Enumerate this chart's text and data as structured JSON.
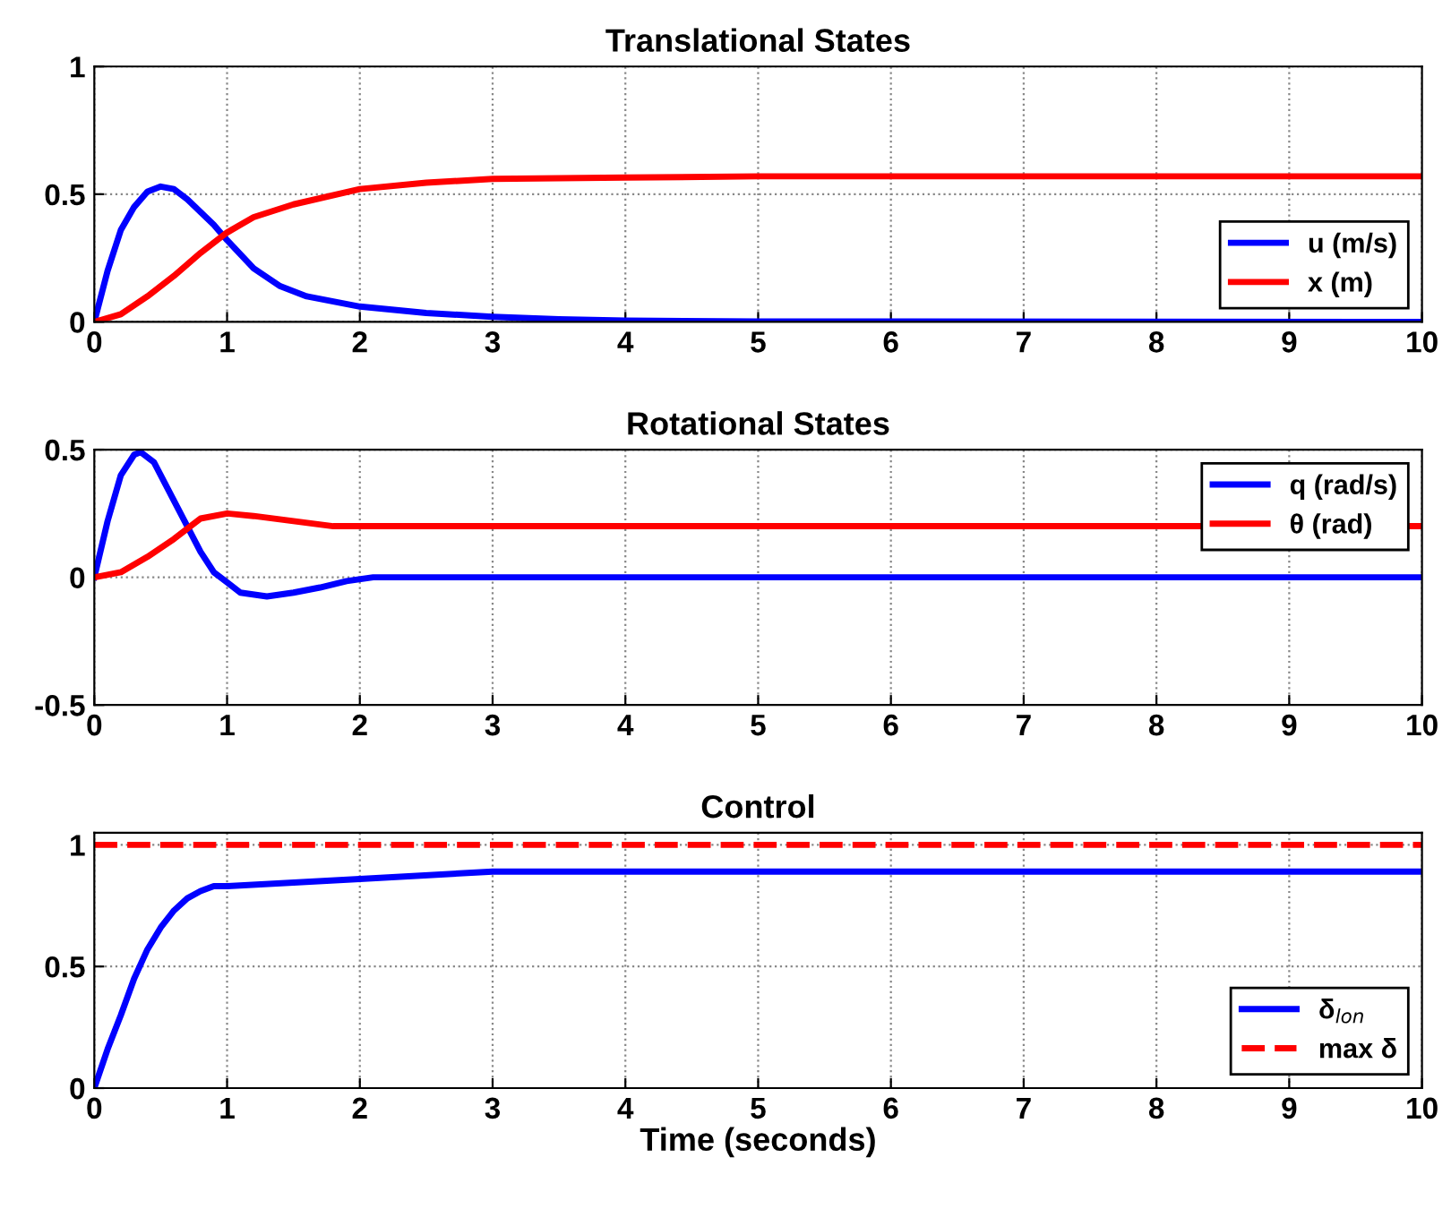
{
  "chart_data": [
    {
      "type": "line",
      "title": "Translational States",
      "xlim": [
        0,
        10
      ],
      "xticks": [
        0,
        1,
        2,
        3,
        4,
        5,
        6,
        7,
        8,
        9,
        10
      ],
      "ylim": [
        0,
        1
      ],
      "yticks": [
        0,
        0.5,
        1
      ],
      "grid": true,
      "legend": "bottom right",
      "series": [
        {
          "name": "u (m/s)",
          "color": "#0000ff",
          "x": [
            0,
            0.1,
            0.2,
            0.3,
            0.4,
            0.5,
            0.6,
            0.7,
            0.8,
            0.9,
            1.0,
            1.2,
            1.4,
            1.6,
            1.8,
            2,
            2.5,
            3,
            3.5,
            4,
            5,
            10
          ],
          "values": [
            0,
            0.2,
            0.36,
            0.45,
            0.51,
            0.53,
            0.52,
            0.48,
            0.43,
            0.38,
            0.32,
            0.21,
            0.14,
            0.1,
            0.08,
            0.06,
            0.035,
            0.02,
            0.01,
            0.005,
            0.002,
            0
          ]
        },
        {
          "name": "x (m)",
          "color": "#ff0000",
          "x": [
            0,
            0.2,
            0.4,
            0.6,
            0.8,
            1.0,
            1.2,
            1.5,
            2,
            2.5,
            3,
            4,
            5,
            10
          ],
          "values": [
            0,
            0.03,
            0.1,
            0.18,
            0.27,
            0.35,
            0.41,
            0.46,
            0.52,
            0.545,
            0.56,
            0.565,
            0.57,
            0.57
          ]
        }
      ]
    },
    {
      "type": "line",
      "title": "Rotational States",
      "xlim": [
        0,
        10
      ],
      "xticks": [
        0,
        1,
        2,
        3,
        4,
        5,
        6,
        7,
        8,
        9,
        10
      ],
      "ylim": [
        -0.5,
        0.5
      ],
      "yticks": [
        -0.5,
        0,
        0.5
      ],
      "grid": true,
      "legend": "top right",
      "series": [
        {
          "name": "q (rad/s)",
          "color": "#0000ff",
          "x": [
            0,
            0.1,
            0.2,
            0.3,
            0.35,
            0.45,
            0.6,
            0.8,
            0.9,
            1.0,
            1.1,
            1.3,
            1.5,
            1.7,
            1.9,
            2.1,
            10
          ],
          "values": [
            0,
            0.22,
            0.4,
            0.48,
            0.49,
            0.45,
            0.3,
            0.1,
            0.02,
            -0.02,
            -0.06,
            -0.075,
            -0.06,
            -0.04,
            -0.015,
            0,
            0
          ]
        },
        {
          "name": "θ (rad)",
          "color": "#ff0000",
          "x": [
            0,
            0.2,
            0.4,
            0.6,
            0.8,
            1.0,
            1.2,
            1.5,
            1.8,
            2,
            10
          ],
          "values": [
            0,
            0.02,
            0.08,
            0.15,
            0.23,
            0.25,
            0.24,
            0.22,
            0.2,
            0.2,
            0.2
          ]
        }
      ]
    },
    {
      "type": "line",
      "title": "Control",
      "xlabel": "Time (seconds)",
      "xlim": [
        0,
        10
      ],
      "xticks": [
        0,
        1,
        2,
        3,
        4,
        5,
        6,
        7,
        8,
        9,
        10
      ],
      "ylim": [
        0,
        1.05
      ],
      "yticks": [
        0,
        0.5,
        1
      ],
      "grid": true,
      "legend": "bottom right",
      "series": [
        {
          "name": "δ$_{lon}$",
          "color": "#0000ff",
          "x": [
            0,
            0.1,
            0.2,
            0.3,
            0.4,
            0.5,
            0.6,
            0.7,
            0.8,
            0.9,
            1,
            2,
            3,
            4,
            10
          ],
          "values": [
            0,
            0.16,
            0.3,
            0.45,
            0.57,
            0.66,
            0.73,
            0.78,
            0.81,
            0.83,
            0.83,
            0.86,
            0.89,
            0.89,
            0.89
          ]
        },
        {
          "name": "max δ",
          "color": "#ff0000",
          "line_style": "dashed",
          "x": [
            0,
            10
          ],
          "values": [
            1,
            1
          ]
        }
      ]
    }
  ]
}
